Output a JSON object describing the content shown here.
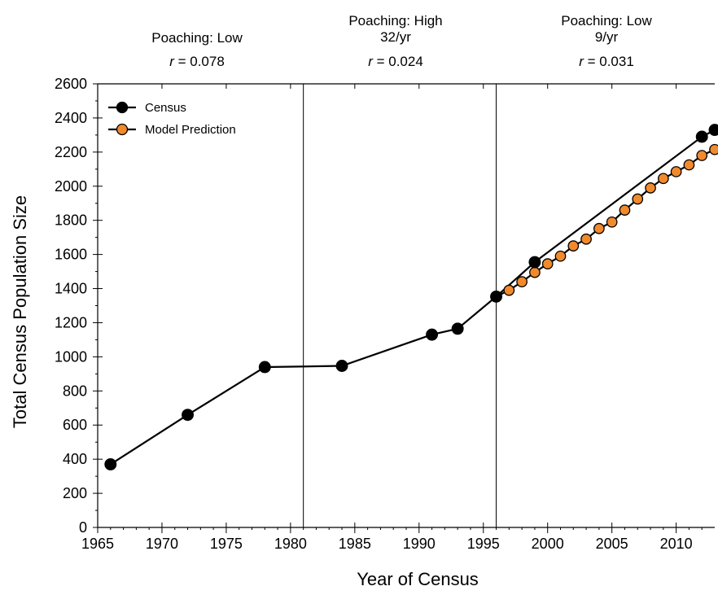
{
  "chart_data": {
    "type": "line",
    "title": "",
    "xlabel": "Year of Census",
    "ylabel": "Total Census Population Size",
    "xlim": [
      1965,
      2013
    ],
    "ylim": [
      0,
      2600
    ],
    "xticks": [
      1965,
      1970,
      1975,
      1980,
      1985,
      1990,
      1995,
      2000,
      2005,
      2010
    ],
    "yticks": [
      0,
      200,
      400,
      600,
      800,
      1000,
      1200,
      1400,
      1600,
      1800,
      2000,
      2200,
      2400,
      2600
    ],
    "grid": false,
    "legend_position": "top-left",
    "series": [
      {
        "name": "Census",
        "color": "#000000",
        "marker": "circle",
        "x": [
          1966,
          1972,
          1978,
          1984,
          1991,
          1993,
          1996,
          1999,
          2012,
          2013
        ],
        "y": [
          370,
          660,
          940,
          947,
          1130,
          1165,
          1353,
          1555,
          2290,
          2330
        ]
      },
      {
        "name": "Model Prediction",
        "color": "#f08a2c",
        "marker": "circle",
        "x": [
          1996,
          1997,
          1998,
          1999,
          2000,
          2001,
          2002,
          2003,
          2004,
          2005,
          2006,
          2007,
          2008,
          2009,
          2010,
          2011,
          2012,
          2013
        ],
        "y": [
          1353,
          1390,
          1440,
          1495,
          1545,
          1590,
          1650,
          1690,
          1752,
          1790,
          1860,
          1925,
          1990,
          2045,
          2085,
          2125,
          2180,
          2215
        ]
      }
    ],
    "vlines": [
      1981,
      1996
    ],
    "annotations": [
      {
        "label": "Poaching: Low",
        "line2": "",
        "r_prefix": "r",
        "r_value": " = 0.078"
      },
      {
        "label": "Poaching: High",
        "line2": "32/yr",
        "r_prefix": "r",
        "r_value": " = 0.024"
      },
      {
        "label": "Poaching: Low",
        "line2": "9/yr",
        "r_prefix": "r",
        "r_value": " = 0.031"
      }
    ]
  }
}
